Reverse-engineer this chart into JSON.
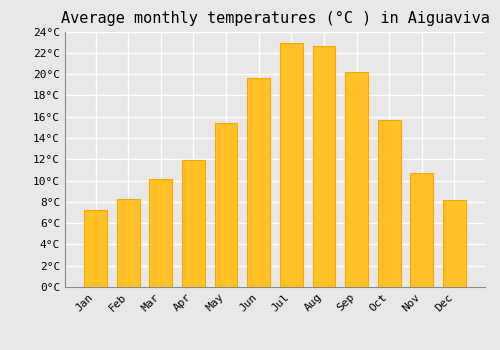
{
  "title": "Average monthly temperatures (°C ) in Aiguaviva",
  "months": [
    "Jan",
    "Feb",
    "Mar",
    "Apr",
    "May",
    "Jun",
    "Jul",
    "Aug",
    "Sep",
    "Oct",
    "Nov",
    "Dec"
  ],
  "values": [
    7.2,
    8.3,
    10.1,
    11.9,
    15.4,
    19.6,
    22.9,
    22.6,
    20.2,
    15.7,
    10.7,
    8.2
  ],
  "bar_color": "#FFC125",
  "bar_edge_color": "#FFA500",
  "background_color": "#E8E8E8",
  "grid_color": "#FFFFFF",
  "ylim": [
    0,
    24
  ],
  "ytick_step": 2,
  "title_fontsize": 11,
  "tick_fontsize": 8,
  "font_family": "monospace",
  "bar_width": 0.7
}
